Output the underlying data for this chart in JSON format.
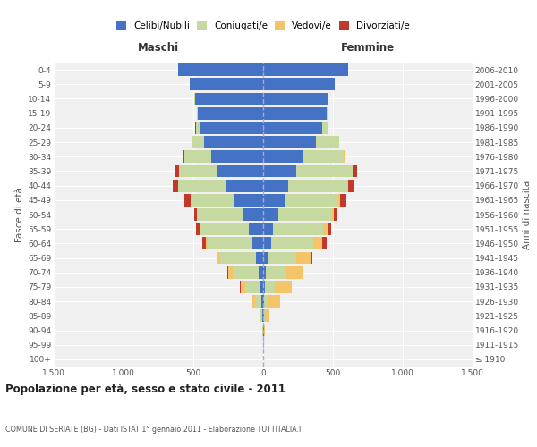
{
  "age_groups": [
    "100+",
    "95-99",
    "90-94",
    "85-89",
    "80-84",
    "75-79",
    "70-74",
    "65-69",
    "60-64",
    "55-59",
    "50-54",
    "45-49",
    "40-44",
    "35-39",
    "30-34",
    "25-29",
    "20-24",
    "15-19",
    "10-14",
    "5-9",
    "0-4"
  ],
  "birth_years": [
    "≤ 1910",
    "1911-1915",
    "1916-1920",
    "1921-1925",
    "1926-1930",
    "1931-1935",
    "1936-1940",
    "1941-1945",
    "1946-1950",
    "1951-1955",
    "1956-1960",
    "1961-1965",
    "1966-1970",
    "1971-1975",
    "1976-1980",
    "1981-1985",
    "1986-1990",
    "1991-1995",
    "1996-2000",
    "2001-2005",
    "2006-2010"
  ],
  "colors": {
    "celibi": "#4472c4",
    "coniugati": "#c5d9a0",
    "vedovi": "#f5c469",
    "divorziati": "#c0392b"
  },
  "male": {
    "celibi": [
      1,
      2,
      3,
      5,
      10,
      18,
      35,
      50,
      80,
      100,
      150,
      210,
      270,
      330,
      370,
      420,
      455,
      470,
      490,
      525,
      610
    ],
    "coniugati": [
      0,
      0,
      2,
      12,
      50,
      110,
      185,
      260,
      320,
      350,
      320,
      310,
      340,
      275,
      195,
      90,
      28,
      4,
      1,
      0,
      0
    ],
    "vedovi": [
      0,
      0,
      1,
      4,
      15,
      35,
      28,
      18,
      10,
      7,
      4,
      2,
      1,
      0,
      0,
      0,
      0,
      0,
      0,
      0,
      0
    ],
    "divorziati": [
      0,
      0,
      0,
      0,
      1,
      2,
      8,
      7,
      28,
      22,
      18,
      45,
      38,
      28,
      12,
      4,
      1,
      0,
      0,
      0,
      0
    ]
  },
  "female": {
    "nubili": [
      1,
      2,
      4,
      4,
      7,
      10,
      22,
      30,
      55,
      72,
      110,
      152,
      180,
      235,
      285,
      375,
      420,
      455,
      465,
      515,
      610
    ],
    "coniugate": [
      0,
      0,
      2,
      10,
      28,
      72,
      140,
      210,
      305,
      355,
      375,
      385,
      425,
      405,
      295,
      170,
      50,
      7,
      2,
      0,
      0
    ],
    "vedove": [
      0,
      2,
      7,
      28,
      85,
      122,
      122,
      105,
      65,
      38,
      22,
      13,
      4,
      2,
      1,
      0,
      0,
      0,
      0,
      0,
      0
    ],
    "divorziate": [
      0,
      0,
      0,
      0,
      1,
      2,
      5,
      7,
      28,
      22,
      22,
      48,
      48,
      32,
      9,
      2,
      1,
      0,
      0,
      0,
      0
    ]
  },
  "xlim": 1500,
  "xtick_vals": [
    -1500,
    -1000,
    -500,
    0,
    500,
    1000,
    1500
  ],
  "xtick_labels": [
    "1.500",
    "1.000",
    "500",
    "0",
    "500",
    "1.000",
    "1.500"
  ],
  "title": "Popolazione per età, sesso e stato civile - 2011",
  "subtitle": "COMUNE DI SERIATE (BG) - Dati ISTAT 1° gennaio 2011 - Elaborazione TUTTITALIA.IT",
  "ylabel_left": "Fasce di età",
  "ylabel_right": "Anni di nascita",
  "label_maschi": "Maschi",
  "label_femmine": "Femmine",
  "legend_labels": [
    "Celibi/Nubili",
    "Coniugati/e",
    "Vedovi/e",
    "Divorziati/e"
  ],
  "bg_color": "#f0f0f0",
  "bar_height": 0.85
}
